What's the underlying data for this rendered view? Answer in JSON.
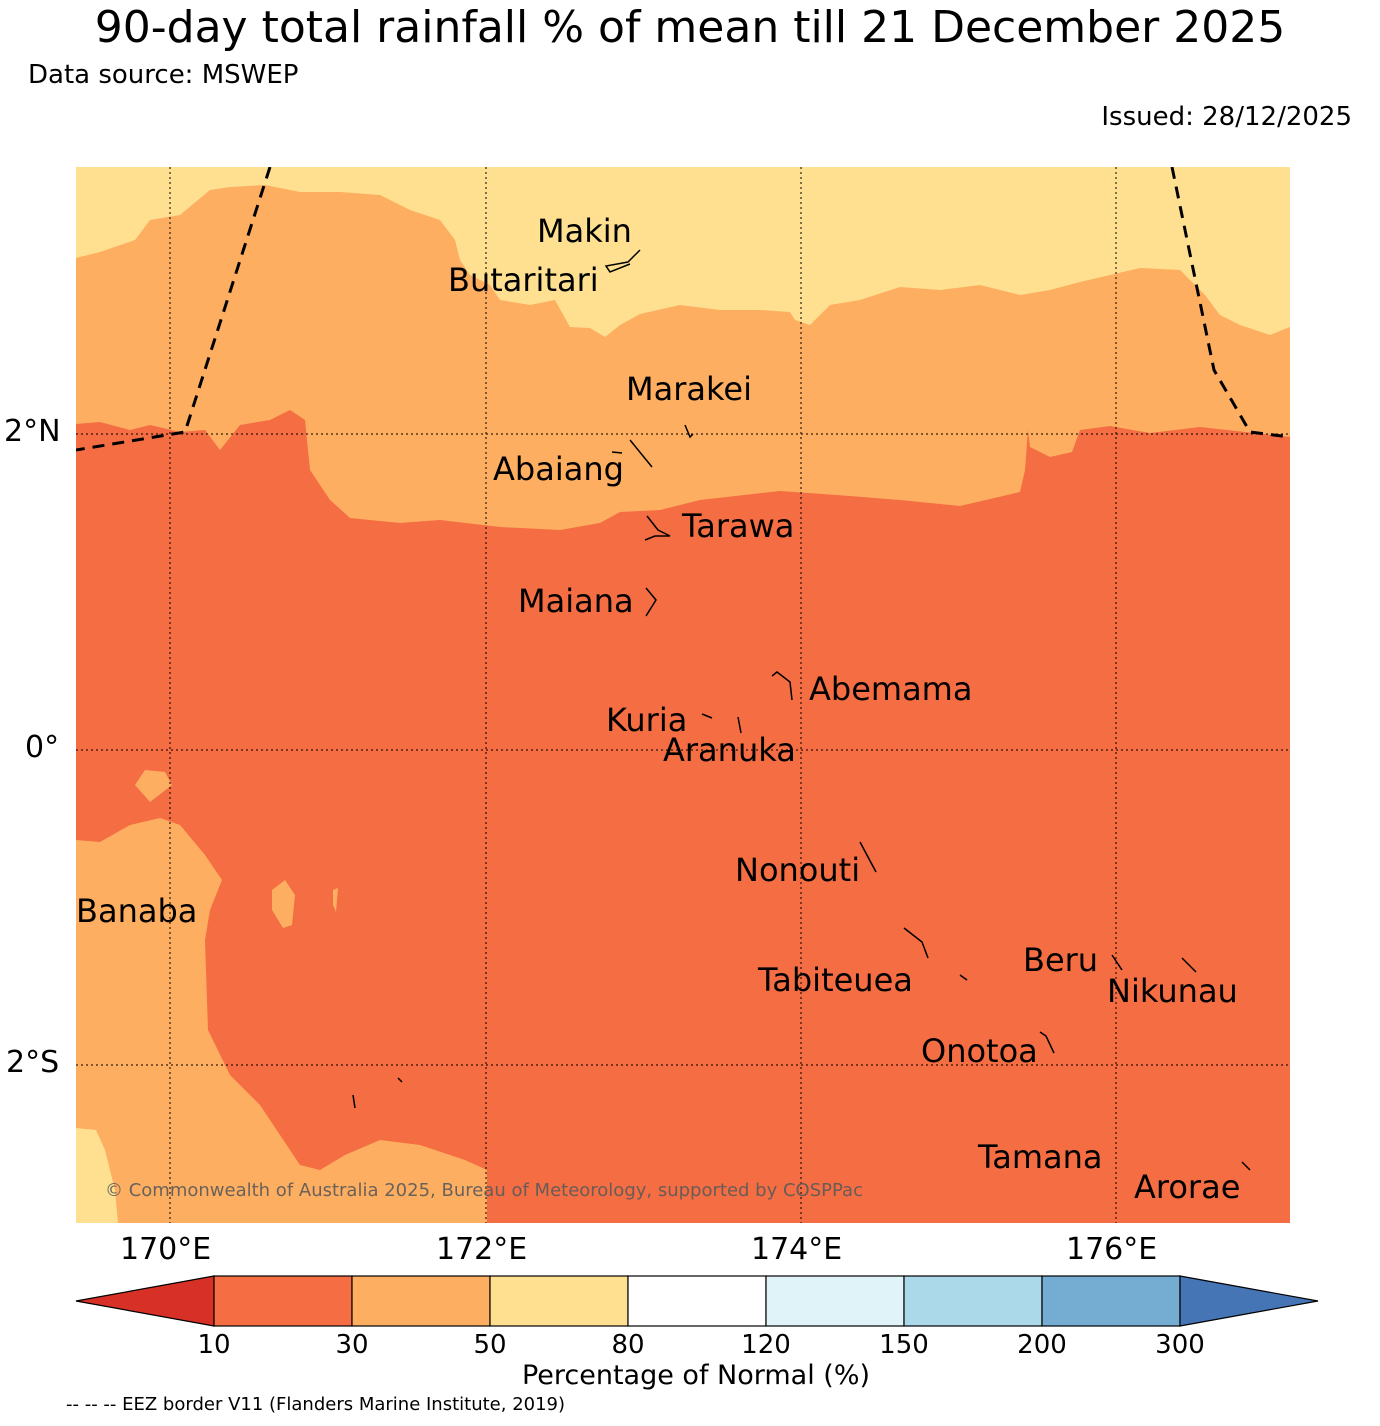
{
  "header": {
    "title": "90-day total rainfall % of mean till 21 December 2025",
    "source": "Data source: MSWEP",
    "issued": "Issued: 28/12/2025"
  },
  "map": {
    "lon_labels": [
      "170°E",
      "172°E",
      "174°E",
      "176°E"
    ],
    "lat_labels": [
      "2°N",
      "0°",
      "2°S"
    ],
    "places": [
      {
        "name": "Makin"
      },
      {
        "name": "Butaritari"
      },
      {
        "name": "Marakei"
      },
      {
        "name": "Abaiang"
      },
      {
        "name": "Tarawa"
      },
      {
        "name": "Maiana"
      },
      {
        "name": "Abemama"
      },
      {
        "name": "Kuria"
      },
      {
        "name": "Aranuka"
      },
      {
        "name": "Nonouti"
      },
      {
        "name": "Banaba"
      },
      {
        "name": "Tabiteuea"
      },
      {
        "name": "Beru"
      },
      {
        "name": "Nikunau"
      },
      {
        "name": "Onotoa"
      },
      {
        "name": "Tamana"
      },
      {
        "name": "Arorae"
      }
    ],
    "copyright": "© Commonwealth of Australia 2025, Bureau of Meteorology, supported by COSPPac"
  },
  "legend": {
    "title": "Percentage of Normal (%)",
    "ticks": [
      "10",
      "30",
      "50",
      "80",
      "120",
      "150",
      "200",
      "300"
    ],
    "colors": [
      "#d73027",
      "#f46d43",
      "#fdae61",
      "#fee090",
      "#ffffff",
      "#e0f3f8",
      "#abd9e9",
      "#74add1",
      "#4575b4"
    ],
    "eez_note": "-- -- -- EEZ border V11 (Flanders Marine Institute, 2019)"
  }
}
